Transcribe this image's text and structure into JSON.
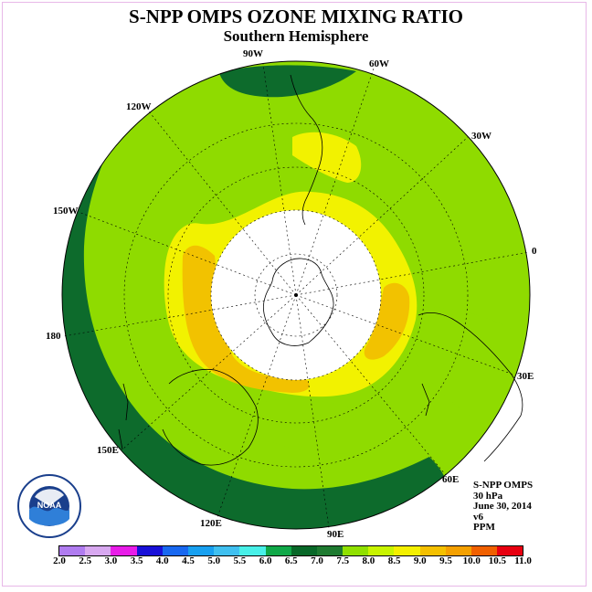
{
  "header": {
    "title": "S-NPP OMPS OZONE MIXING RATIO",
    "subtitle": "Southern Hemisphere"
  },
  "longitude_labels": [
    "90W",
    "60W",
    "30W",
    "0",
    "30E",
    "60E",
    "90E",
    "120E",
    "150E",
    "180",
    "150W",
    "120W"
  ],
  "info": {
    "line1": "S-NPP OMPS",
    "line2": "30 hPa",
    "line3": "June 30, 2014",
    "line4": "v6",
    "line5": "PPM"
  },
  "logo": {
    "text": "NOAA",
    "ring_text": "NATIONAL OCEANIC AND ATMOSPHERIC ADMINISTRATION · U.S. DEPARTMENT OF COMMERCE"
  },
  "colorbar": {
    "ticks": [
      "2.0",
      "2.5",
      "3.0",
      "3.5",
      "4.0",
      "4.5",
      "5.0",
      "5.5",
      "6.0",
      "6.5",
      "7.0",
      "7.5",
      "8.0",
      "8.5",
      "9.0",
      "9.5",
      "10.0",
      "10.5",
      "11.0"
    ],
    "colors": [
      "#b07cf0",
      "#d8a8f0",
      "#e81ce8",
      "#1810d8",
      "#1868f0",
      "#18a0f0",
      "#40c0f0",
      "#48f0e8",
      "#10a848",
      "#086828",
      "#1e7a30",
      "#90e000",
      "#c8f400",
      "#f4f000",
      "#f4c000",
      "#f4a000",
      "#f06000",
      "#e80010",
      "#8a5838"
    ]
  },
  "map_colors": {
    "dark_green": "#0d6b2c",
    "medium_green": "#8fdb00",
    "yellow_green": "#c8f400",
    "yellow": "#f2f200",
    "orange": "#f2c200",
    "no_data": "#ffffff"
  }
}
